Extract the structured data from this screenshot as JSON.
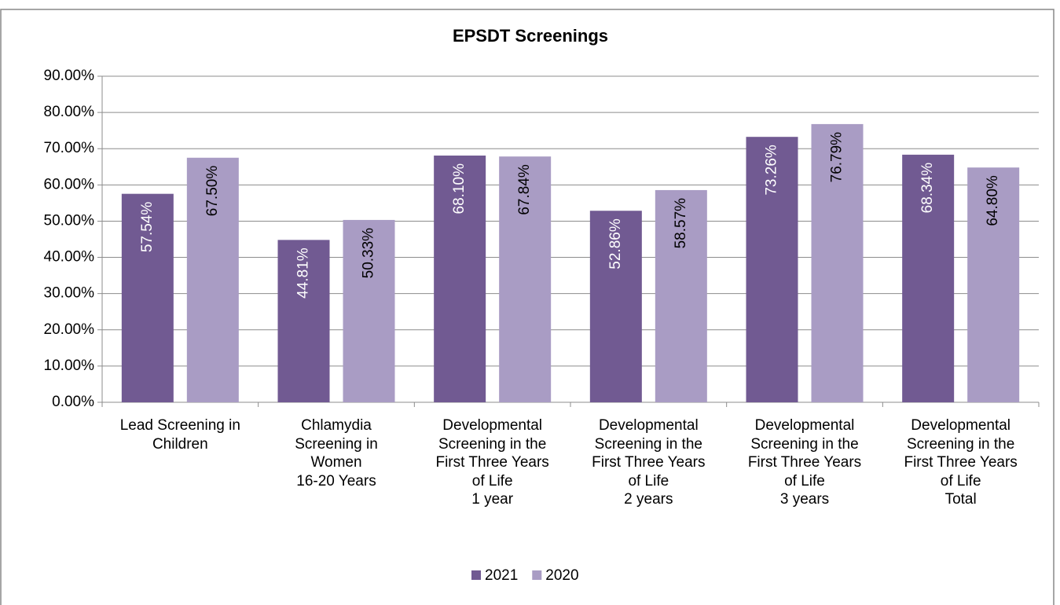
{
  "chart_data": {
    "type": "bar",
    "title": "EPSDT Screenings",
    "categories": [
      "Lead Screening in\nChildren",
      "Chlamydia\nScreening in\nWomen\n16-20 Years",
      "Developmental\nScreening in the\nFirst Three Years\nof Life\n1 year",
      "Developmental\nScreening in the\nFirst Three Years\nof Life\n2 years",
      "Developmental\nScreening in the\nFirst Three Years\nof Life\n3 years",
      "Developmental\nScreening in the\nFirst Three Years\nof Life\nTotal"
    ],
    "series": [
      {
        "name": "2021",
        "color": "#715a92",
        "values": [
          57.54,
          44.81,
          68.1,
          52.86,
          73.26,
          68.34
        ],
        "value_labels": [
          "57.54%",
          "44.81%",
          "68.10%",
          "52.86%",
          "73.26%",
          "68.34%"
        ]
      },
      {
        "name": "2020",
        "color": "#a99cc4",
        "values": [
          67.5,
          50.33,
          67.84,
          58.57,
          76.79,
          64.8
        ],
        "value_labels": [
          "67.50%",
          "50.33%",
          "67.84%",
          "58.57%",
          "76.79%",
          "64.80%"
        ]
      }
    ],
    "ylim": [
      0,
      90
    ],
    "yticks": [
      {
        "value": 0,
        "label": "0.00%"
      },
      {
        "value": 10,
        "label": "10.00%"
      },
      {
        "value": 20,
        "label": "20.00%"
      },
      {
        "value": 30,
        "label": "30.00%"
      },
      {
        "value": 40,
        "label": "40.00%"
      },
      {
        "value": 50,
        "label": "50.00%"
      },
      {
        "value": 60,
        "label": "60.00%"
      },
      {
        "value": 70,
        "label": "70.00%"
      },
      {
        "value": 80,
        "label": "80.00%"
      },
      {
        "value": 90,
        "label": "90.00%"
      }
    ],
    "grid": true,
    "legend": "bottom"
  }
}
